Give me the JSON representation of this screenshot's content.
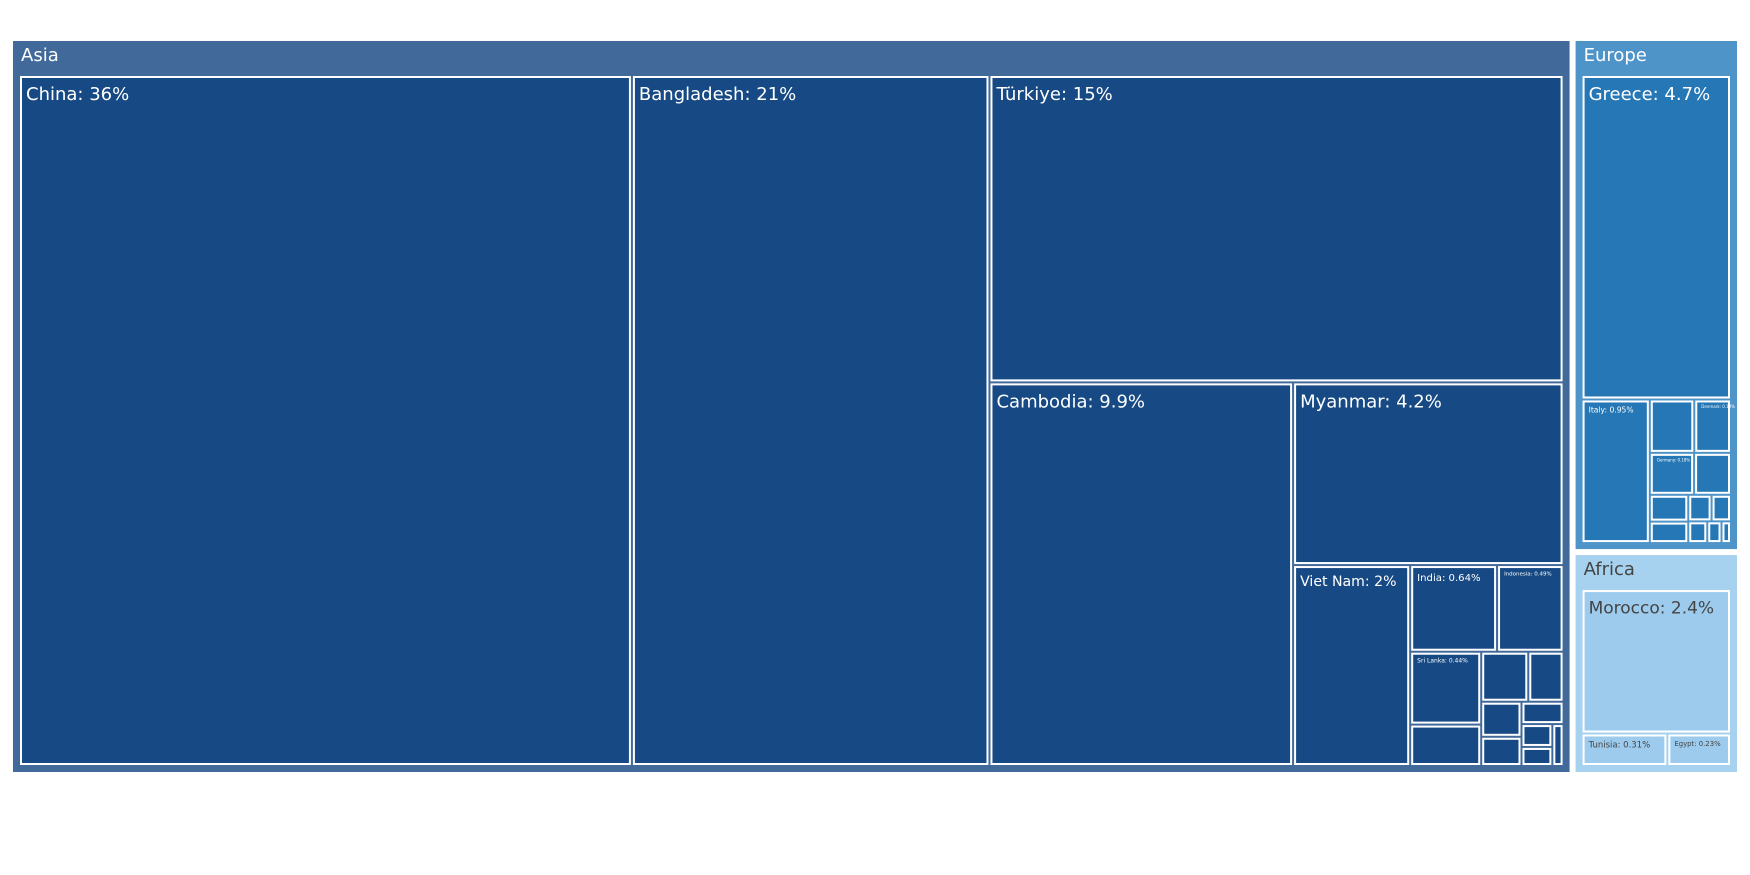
{
  "chart_data": {
    "type": "treemap",
    "groups": [
      {
        "name": "Asia",
        "color": "#416a9a",
        "leaf_color": "#174a84",
        "text_color": "#ffffff",
        "leaves": [
          {
            "label": "China: 36%",
            "value": 36
          },
          {
            "label": "Bangladesh: 21%",
            "value": 21
          },
          {
            "label": "Türkiye: 15%",
            "value": 15
          },
          {
            "label": "Cambodia: 9.9%",
            "value": 9.9
          },
          {
            "label": "Myanmar: 4.2%",
            "value": 4.2
          },
          {
            "label": "Viet Nam: 2%",
            "value": 2
          },
          {
            "label": "India: 0.64%",
            "value": 0.64
          },
          {
            "label": "Indonesia: 0.49%",
            "value": 0.49
          },
          {
            "label": "Sri Lanka: 0.44%",
            "value": 0.44
          },
          {
            "label": null,
            "value": 0.25
          },
          {
            "label": null,
            "value": 0.2
          },
          {
            "label": null,
            "value": 0.15
          },
          {
            "label": null,
            "value": 0.12
          },
          {
            "label": null,
            "value": 0.1
          },
          {
            "label": null,
            "value": 0.08
          },
          {
            "label": null,
            "value": 0.06
          },
          {
            "label": null,
            "value": 0.05
          },
          {
            "label": null,
            "value": 0.04
          }
        ]
      },
      {
        "name": "Europe",
        "color": "#4f94c8",
        "leaf_color": "#2577b5",
        "text_color": "#ffffff",
        "leaves": [
          {
            "label": "Greece: 4.7%",
            "value": 4.7
          },
          {
            "label": "Italy: 0.95%",
            "value": 0.95
          },
          {
            "label": null,
            "value": 0.23
          },
          {
            "label": "Denmark: 0.19%",
            "value": 0.19
          },
          {
            "label": "Germany: 0.18%",
            "value": 0.18
          },
          {
            "label": null,
            "value": 0.15
          },
          {
            "label": null,
            "value": 0.1
          },
          {
            "label": null,
            "value": 0.08
          },
          {
            "label": null,
            "value": 0.06
          },
          {
            "label": null,
            "value": 0.05
          },
          {
            "label": null,
            "value": 0.04
          },
          {
            "label": null,
            "value": 0.03
          },
          {
            "label": null,
            "value": 0.02
          }
        ]
      },
      {
        "name": "Africa",
        "color": "#a6d1ef",
        "leaf_color": "#9ccbee",
        "text_color": "#444444",
        "leaves": [
          {
            "label": "Morocco: 2.4%",
            "value": 2.4
          },
          {
            "label": "Tunisia: 0.31%",
            "value": 0.31
          },
          {
            "label": "Egypt: 0.23%",
            "value": 0.23
          }
        ]
      }
    ]
  }
}
